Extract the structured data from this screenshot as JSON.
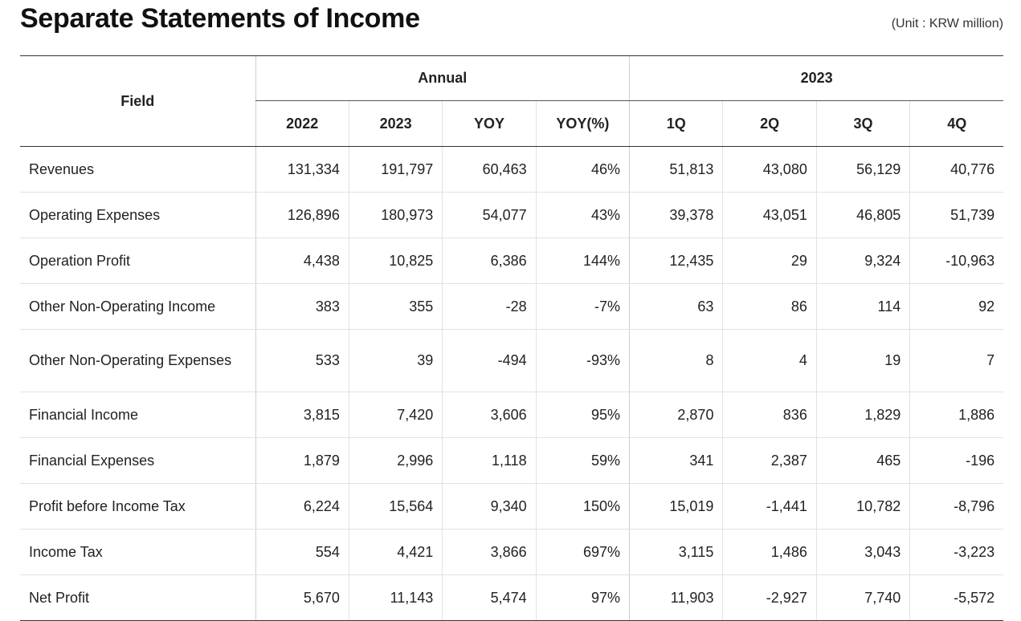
{
  "title": "Separate Statements of Income",
  "unit": "(Unit : KRW million)",
  "header": {
    "field": "Field",
    "groups": [
      "Annual",
      "2023"
    ],
    "columns": [
      "2022",
      "2023",
      "YOY",
      "YOY(%)",
      "1Q",
      "2Q",
      "3Q",
      "4Q"
    ]
  },
  "rows": [
    {
      "label": "Revenues",
      "values": [
        "131,334",
        "191,797",
        "60,463",
        "46%",
        "51,813",
        "43,080",
        "56,129",
        "40,776"
      ]
    },
    {
      "label": "Operating Expenses",
      "values": [
        "126,896",
        "180,973",
        "54,077",
        "43%",
        "39,378",
        "43,051",
        "46,805",
        "51,739"
      ]
    },
    {
      "label": "Operation Profit",
      "values": [
        "4,438",
        "10,825",
        "6,386",
        "144%",
        "12,435",
        "29",
        "9,324",
        "-10,963"
      ]
    },
    {
      "label": "Other Non-Operating Income",
      "values": [
        "383",
        "355",
        "-28",
        "-7%",
        "63",
        "86",
        "114",
        "92"
      ]
    },
    {
      "label": "Other Non-Operating Expenses",
      "values": [
        "533",
        "39",
        "-494",
        "-93%",
        "8",
        "4",
        "19",
        "7"
      ]
    },
    {
      "label": "Financial Income",
      "values": [
        "3,815",
        "7,420",
        "3,606",
        "95%",
        "2,870",
        "836",
        "1,829",
        "1,886"
      ]
    },
    {
      "label": "Financial Expenses",
      "values": [
        "1,879",
        "2,996",
        "1,118",
        "59%",
        "341",
        "2,387",
        "465",
        "-196"
      ]
    },
    {
      "label": "Profit before Income Tax",
      "values": [
        "6,224",
        "15,564",
        "9,340",
        "150%",
        "15,019",
        "-1,441",
        "10,782",
        "-8,796"
      ]
    },
    {
      "label": "Income Tax",
      "values": [
        "554",
        "4,421",
        "3,866",
        "697%",
        "3,115",
        "1,486",
        "3,043",
        "-3,223"
      ]
    },
    {
      "label": "Net Profit",
      "values": [
        "5,670",
        "11,143",
        "5,474",
        "97%",
        "11,903",
        "-2,927",
        "7,740",
        "-5,572"
      ]
    }
  ]
}
